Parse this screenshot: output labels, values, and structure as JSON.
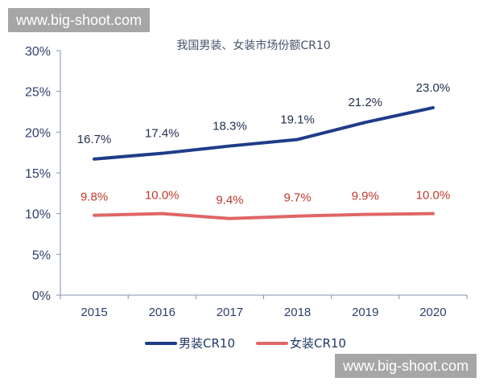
{
  "watermark": "www.big-shoot.com",
  "chart_data": {
    "type": "line",
    "title": "我国男装、女装市场份额CR10",
    "categories": [
      "2015",
      "2016",
      "2017",
      "2018",
      "2019",
      "2020"
    ],
    "ylim": [
      0,
      30
    ],
    "yticks": [
      "0%",
      "5%",
      "10%",
      "15%",
      "20%",
      "25%",
      "30%"
    ],
    "grid": false,
    "legend_position": "bottom",
    "series": [
      {
        "name": "男装CR10",
        "color": "#1f3c88",
        "values": [
          16.7,
          17.4,
          18.3,
          19.1,
          21.2,
          23.0
        ],
        "labels": [
          "16.7%",
          "17.4%",
          "18.3%",
          "19.1%",
          "21.2%",
          "23.0%"
        ],
        "label_color": "#1f2d4f"
      },
      {
        "name": "女装CR10",
        "color": "#e06666",
        "values": [
          9.8,
          10.0,
          9.4,
          9.7,
          9.9,
          10.0
        ],
        "labels": [
          "9.8%",
          "10.0%",
          "9.4%",
          "9.7%",
          "9.9%",
          "10.0%"
        ],
        "label_color": "#c0392b"
      }
    ]
  }
}
